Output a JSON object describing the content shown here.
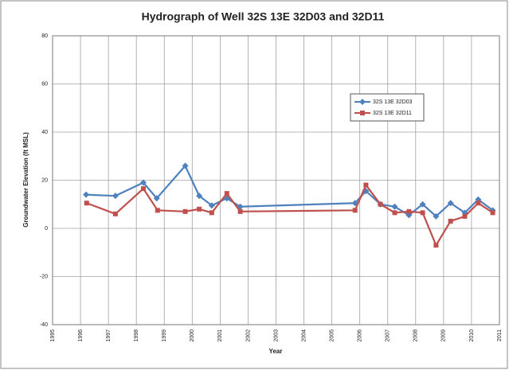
{
  "chart_data": {
    "type": "line",
    "title": "Hydrograph of Well 32S 13E 32D03 and 32D11",
    "x_label": "Year",
    "y_label": "Groundwater Elevation (ft MSL)",
    "xlim": [
      1995,
      2011
    ],
    "xticks": [
      1995,
      1996,
      1997,
      1998,
      1999,
      2000,
      2001,
      2002,
      2003,
      2004,
      2005,
      2006,
      2007,
      2008,
      2009,
      2010,
      2011
    ],
    "ylim": [
      -40,
      80
    ],
    "yticks": [
      -40,
      -20,
      0,
      20,
      40,
      60,
      80
    ],
    "grid": true,
    "legend": "upper right",
    "series": [
      {
        "name": "32S 13E 32D03",
        "color": "#4f81bd",
        "marker": "diamond",
        "x": [
          1996.2,
          1997.25,
          1998.25,
          1998.73,
          1999.75,
          2000.25,
          2000.7,
          2001.24,
          2001.72,
          2005.83,
          2006.22,
          2006.74,
          2007.25,
          2007.76,
          2008.25,
          2008.73,
          2009.25,
          2009.76,
          2010.24,
          2010.76
        ],
        "values": [
          14,
          13.5,
          19,
          12.5,
          26,
          13.5,
          9.5,
          12.5,
          9,
          10.5,
          15.5,
          10,
          9,
          5.5,
          10,
          5,
          10.5,
          6.5,
          12,
          7.5
        ]
      },
      {
        "name": "32S 13E 32D11",
        "color": "#c0504d",
        "marker": "square",
        "x": [
          1996.22,
          1997.25,
          1998.25,
          1998.76,
          1999.75,
          2000.25,
          2000.7,
          2001.24,
          2001.72,
          2005.83,
          2006.22,
          2006.74,
          2007.25,
          2007.76,
          2008.25,
          2008.73,
          2009.25,
          2009.76,
          2010.24,
          2010.76
        ],
        "values": [
          10.5,
          6,
          16.5,
          7.5,
          7,
          8,
          6.5,
          14.5,
          7,
          7.5,
          18,
          10,
          6.5,
          7,
          6.5,
          -7,
          3,
          5,
          10.5,
          6.5
        ]
      }
    ]
  }
}
